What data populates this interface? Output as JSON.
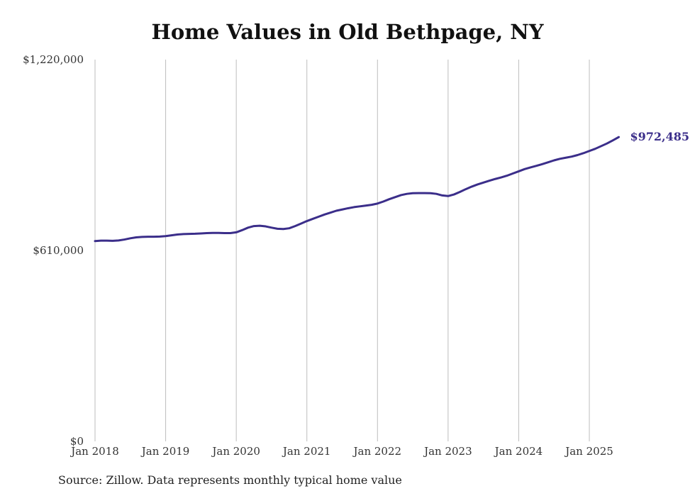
{
  "chart_data": {
    "type": "line",
    "title": "Home Values in Old Bethpage, NY",
    "xlabel": "",
    "ylabel": "",
    "ylim": [
      0,
      1220000
    ],
    "y_ticks": [
      "$0",
      "$610,000",
      "$1,220,000"
    ],
    "y_tick_values": [
      0,
      610000,
      1220000
    ],
    "x_ticks": [
      "Jan 2018",
      "Jan 2019",
      "Jan 2020",
      "Jan 2021",
      "Jan 2022",
      "Jan 2023",
      "Jan 2024",
      "Jan 2025"
    ],
    "x_tick_values": [
      2018,
      2019,
      2020,
      2021,
      2022,
      2023,
      2024,
      2025
    ],
    "xlim": [
      2018,
      2025.4167
    ],
    "grid": "vertical",
    "series": [
      {
        "color": "#3b2e8a",
        "x": [
          2018.0,
          2018.0833,
          2018.1667,
          2018.25,
          2018.3333,
          2018.4167,
          2018.5,
          2018.5833,
          2018.6667,
          2018.75,
          2018.8333,
          2018.9167,
          2019.0,
          2019.0833,
          2019.1667,
          2019.25,
          2019.3333,
          2019.4167,
          2019.5,
          2019.5833,
          2019.6667,
          2019.75,
          2019.8333,
          2019.9167,
          2020.0,
          2020.0833,
          2020.1667,
          2020.25,
          2020.3333,
          2020.4167,
          2020.5,
          2020.5833,
          2020.6667,
          2020.75,
          2020.8333,
          2020.9167,
          2021.0,
          2021.0833,
          2021.1667,
          2021.25,
          2021.3333,
          2021.4167,
          2021.5,
          2021.5833,
          2021.6667,
          2021.75,
          2021.8333,
          2021.9167,
          2022.0,
          2022.0833,
          2022.1667,
          2022.25,
          2022.3333,
          2022.4167,
          2022.5,
          2022.5833,
          2022.6667,
          2022.75,
          2022.8333,
          2022.9167,
          2023.0,
          2023.0833,
          2023.1667,
          2023.25,
          2023.3333,
          2023.4167,
          2023.5,
          2023.5833,
          2023.6667,
          2023.75,
          2023.8333,
          2023.9167,
          2024.0,
          2024.0833,
          2024.1667,
          2024.25,
          2024.3333,
          2024.4167,
          2024.5,
          2024.5833,
          2024.6667,
          2024.75,
          2024.8333,
          2024.9167,
          2025.0,
          2025.0833,
          2025.1667,
          2025.25,
          2025.3333,
          2025.4167
        ],
        "values": [
          640000,
          641500,
          641500,
          641000,
          642000,
          645000,
          649000,
          652000,
          653500,
          654000,
          654000,
          654500,
          656000,
          658500,
          661000,
          662500,
          663000,
          663500,
          664500,
          665500,
          666000,
          666000,
          665500,
          665500,
          668000,
          675000,
          683000,
          688000,
          689000,
          687000,
          683000,
          679500,
          678500,
          681000,
          688000,
          696000,
          704000,
          711000,
          718000,
          725000,
          731000,
          737000,
          741000,
          745000,
          748500,
          751000,
          753500,
          756000,
          760000,
          766500,
          774000,
          780500,
          787000,
          791000,
          793000,
          793500,
          793500,
          793000,
          791000,
          786000,
          784000,
          789000,
          797000,
          806000,
          814000,
          821000,
          827000,
          833000,
          838500,
          843500,
          849000,
          856000,
          863000,
          870000,
          875500,
          880500,
          886000,
          892000,
          898000,
          903000,
          906500,
          910000,
          915000,
          921000,
          928000,
          935000,
          943500,
          952000,
          962000,
          972485
        ]
      }
    ],
    "end_label": "$972,485"
  },
  "footer": {
    "source": "Source: Zillow. Data represents monthly typical home value"
  }
}
